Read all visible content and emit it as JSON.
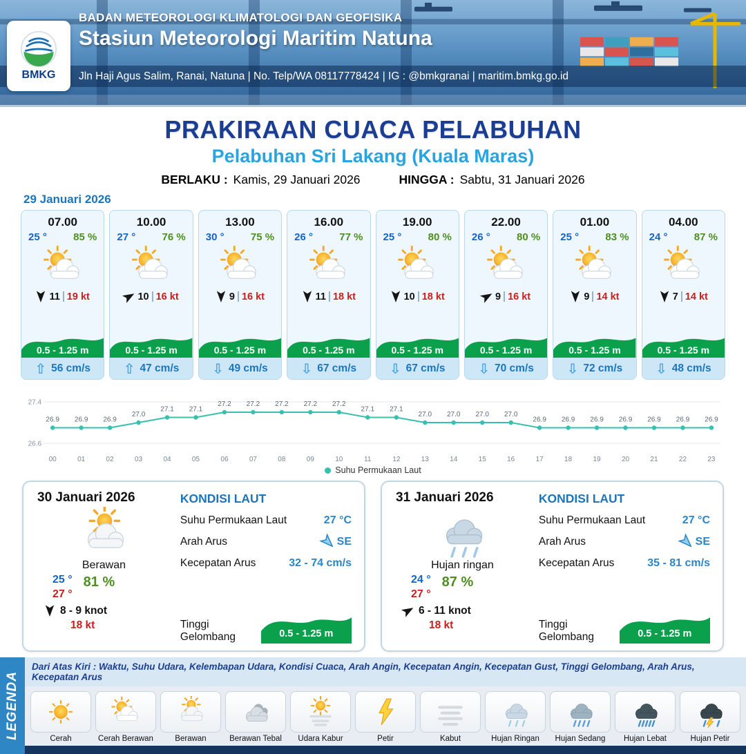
{
  "header": {
    "logo": "BMKG",
    "agency": "BADAN METEOROLOGI KLIMATOLOGI DAN GEOFISIKA",
    "station": "Stasiun Meteorologi Maritim Natuna",
    "contact": "Jln Haji Agus Salim, Ranai, Natuna  | No. Telp/WA 08117778424 | IG : @bmkgranai | maritim.bmkg.go.id"
  },
  "title": {
    "main": "PRAKIRAAN CUACA PELABUHAN",
    "subtitle": "Pelabuhan Sri Lakang (Kuala Maras)",
    "valid_from_label": "BERLAKU :",
    "valid_from": "Kamis, 29 Januari 2026",
    "valid_to_label": "HINGGA :",
    "valid_to": "Sabtu, 31 Januari 2026"
  },
  "day1": {
    "date": "29 Januari 2026",
    "cards": [
      {
        "time": "07.00",
        "temp": "25 °",
        "humidity": "85 %",
        "icon": "cerah-berawan",
        "wind_deg": 180,
        "wind_speed": "11",
        "gust": "19 kt",
        "wave": "0.5 - 1.25 m",
        "current_dir": "up",
        "current": "56 cm/s"
      },
      {
        "time": "10.00",
        "temp": "27 °",
        "humidity": "76 %",
        "icon": "cerah-berawan",
        "wind_deg": 60,
        "wind_speed": "10",
        "gust": "16 kt",
        "wave": "0.5 - 1.25 m",
        "current_dir": "up",
        "current": "47 cm/s"
      },
      {
        "time": "13.00",
        "temp": "30 °",
        "humidity": "75 %",
        "icon": "cerah-berawan",
        "wind_deg": 180,
        "wind_speed": "9",
        "gust": "16 kt",
        "wave": "0.5 - 1.25 m",
        "current_dir": "down",
        "current": "49 cm/s"
      },
      {
        "time": "16.00",
        "temp": "26 °",
        "humidity": "77 %",
        "icon": "cerah-berawan",
        "wind_deg": 180,
        "wind_speed": "11",
        "gust": "18 kt",
        "wave": "0.5 - 1.25 m",
        "current_dir": "down",
        "current": "67 cm/s"
      },
      {
        "time": "19.00",
        "temp": "25 °",
        "humidity": "80 %",
        "icon": "cerah-berawan",
        "wind_deg": 180,
        "wind_speed": "10",
        "gust": "18 kt",
        "wave": "0.5 - 1.25 m",
        "current_dir": "down",
        "current": "67 cm/s"
      },
      {
        "time": "22.00",
        "temp": "26 °",
        "humidity": "80 %",
        "icon": "cerah-berawan",
        "wind_deg": 60,
        "wind_speed": "9",
        "gust": "16 kt",
        "wave": "0.5 - 1.25 m",
        "current_dir": "down",
        "current": "70 cm/s"
      },
      {
        "time": "01.00",
        "temp": "25 °",
        "humidity": "83 %",
        "icon": "cerah-berawan",
        "wind_deg": 180,
        "wind_speed": "9",
        "gust": "14 kt",
        "wave": "0.5 - 1.25 m",
        "current_dir": "down",
        "current": "72 cm/s"
      },
      {
        "time": "04.00",
        "temp": "24 °",
        "humidity": "87 %",
        "icon": "cerah-berawan",
        "wind_deg": 180,
        "wind_speed": "7",
        "gust": "14 kt",
        "wave": "0.5 - 1.25 m",
        "current_dir": "down",
        "current": "48 cm/s"
      }
    ]
  },
  "chart_data": {
    "type": "line",
    "series_name": "Suhu Permukaan Laut",
    "x": [
      "00",
      "01",
      "02",
      "03",
      "04",
      "05",
      "06",
      "07",
      "08",
      "09",
      "10",
      "11",
      "12",
      "13",
      "14",
      "15",
      "16",
      "17",
      "18",
      "19",
      "20",
      "21",
      "22",
      "23"
    ],
    "values": [
      26.9,
      26.9,
      26.9,
      27.0,
      27.1,
      27.1,
      27.2,
      27.2,
      27.2,
      27.2,
      27.2,
      27.1,
      27.1,
      27.0,
      27.0,
      27.0,
      27.0,
      26.9,
      26.9,
      26.9,
      26.9,
      26.9,
      26.9,
      26.9
    ],
    "ylim": [
      26.6,
      27.4
    ],
    "line_color": "#35c0b0",
    "legend_position": "bottom",
    "grid": true
  },
  "day2": {
    "date": "30 Januari 2026",
    "condition": "Berawan",
    "icon": "berawan",
    "temp_min": "25 °",
    "temp_max": "27 °",
    "humidity": "81 %",
    "wind_deg": 180,
    "wind": "8  - 9 knot",
    "gust": "18 kt",
    "sea": {
      "heading": "KONDISI LAUT",
      "sst_label": "Suhu Permukaan Laut",
      "sst": "27 °C",
      "current_dir_label": "Arah Arus",
      "current_dir": "SE",
      "current_deg": 135,
      "current_speed_label": "Kecepatan Arus",
      "current_speed": "32 - 74 cm/s",
      "wave_label": "Tinggi Gelombang",
      "wave": "0.5 - 1.25 m"
    }
  },
  "day3": {
    "date": "31 Januari 2026",
    "condition": "Hujan ringan",
    "icon": "hujan-ringan",
    "temp_min": "24 °",
    "temp_max": "27 °",
    "humidity": "87 %",
    "wind_deg": 60,
    "wind": "6  - 11 knot",
    "gust": "18 kt",
    "sea": {
      "heading": "KONDISI LAUT",
      "sst_label": "Suhu Permukaan Laut",
      "sst": "27 °C",
      "current_dir_label": "Arah Arus",
      "current_dir": "SE",
      "current_deg": 135,
      "current_speed_label": "Kecepatan Arus",
      "current_speed": "35 - 81 cm/s",
      "wave_label": "Tinggi Gelombang",
      "wave": "0.5 - 1.25 m"
    }
  },
  "legend": {
    "title": "LEGENDA",
    "note": "Dari Atas Kiri : Waktu, Suhu Udara, Kelembapan Udara, Kondisi Cuaca, Arah Angin, Kecepatan Angin, Kecepatan Gust, Tinggi Gelombang, Arah Arus, Kecepatan Arus",
    "items": [
      {
        "label": "Cerah",
        "icon": "cerah"
      },
      {
        "label": "Cerah Berawan",
        "icon": "cerah-berawan"
      },
      {
        "label": "Berawan",
        "icon": "berawan"
      },
      {
        "label": "Berawan Tebal",
        "icon": "berawan-tebal"
      },
      {
        "label": "Udara Kabur",
        "icon": "udara-kabur"
      },
      {
        "label": "Petir",
        "icon": "petir"
      },
      {
        "label": "Kabut",
        "icon": "kabut"
      },
      {
        "label": "Hujan Ringan",
        "icon": "hujan-ringan"
      },
      {
        "label": "Hujan Sedang",
        "icon": "hujan-sedang"
      },
      {
        "label": "Hujan Lebat",
        "icon": "hujan-lebat"
      },
      {
        "label": "Hujan Petir",
        "icon": "hujan-petir"
      }
    ]
  }
}
